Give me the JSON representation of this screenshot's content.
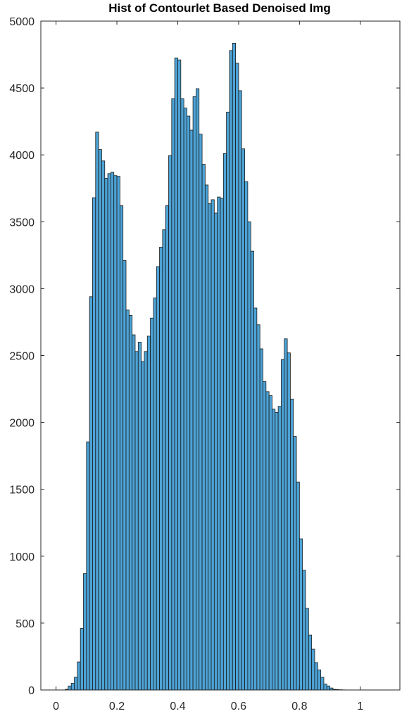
{
  "chart_data": {
    "type": "bar",
    "title": "Hist of Contourlet Based Denoised Img",
    "xlabel": "",
    "ylabel": "",
    "xlim": [
      -0.05,
      1.13
    ],
    "ylim": [
      0,
      5000
    ],
    "grid": false,
    "x_ticks": [
      0,
      0.2,
      0.4,
      0.6,
      0.8,
      1
    ],
    "x_tick_labels": [
      "0",
      "0.2",
      "0.4",
      "0.6",
      "0.8",
      "1"
    ],
    "y_ticks": [
      0,
      500,
      1000,
      1500,
      2000,
      2500,
      3000,
      3500,
      4000,
      4500,
      5000
    ],
    "y_tick_labels": [
      "0",
      "500",
      "1000",
      "1500",
      "2000",
      "2500",
      "3000",
      "3500",
      "4000",
      "4500",
      "5000"
    ],
    "bin_start": 0.0,
    "bin_width": 0.01,
    "bar_color": "#4DA3D6",
    "edge_color": "#1a1a1a",
    "values": [
      0,
      0,
      0,
      5,
      30,
      50,
      95,
      210,
      460,
      870,
      1855,
      2940,
      3680,
      4170,
      4040,
      3955,
      3825,
      3860,
      3870,
      3845,
      3840,
      3620,
      3210,
      2840,
      2800,
      2655,
      2530,
      2600,
      2455,
      2530,
      2645,
      2780,
      2930,
      3165,
      3310,
      3440,
      3620,
      3995,
      4420,
      4725,
      4710,
      4420,
      4350,
      4290,
      4185,
      4435,
      4495,
      4155,
      3930,
      3775,
      3635,
      3665,
      3565,
      3685,
      3675,
      4010,
      4320,
      4780,
      4835,
      4685,
      4480,
      4045,
      3800,
      3500,
      3280,
      2855,
      2730,
      2550,
      2305,
      2230,
      2200,
      2100,
      2075,
      2120,
      2470,
      2625,
      2520,
      2175,
      1895,
      1555,
      1130,
      895,
      610,
      410,
      305,
      205,
      150,
      95,
      45,
      30,
      15,
      5,
      3,
      2,
      1,
      0,
      0
    ]
  }
}
